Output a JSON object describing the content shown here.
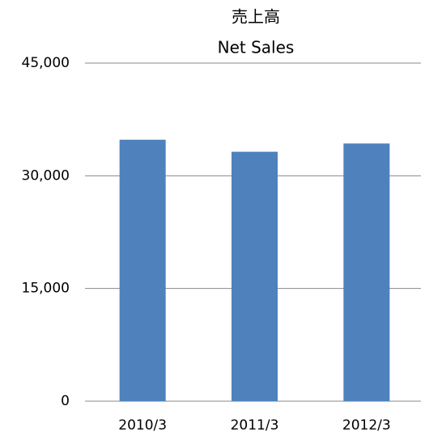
{
  "chart_data": {
    "type": "bar",
    "title": "売上高",
    "subtitle": "Net Sales",
    "categories": [
      "2010/3",
      "2011/3",
      "2012/3"
    ],
    "values": [
      34800,
      33200,
      34300
    ],
    "color": "#4f81bd",
    "ylim": [
      0,
      45000
    ],
    "yticks": [
      {
        "value": 0,
        "label": "0"
      },
      {
        "value": 15000,
        "label": "15,000"
      },
      {
        "value": 30000,
        "label": "30,000"
      },
      {
        "value": 45000,
        "label": "45,000"
      }
    ],
    "grid": true
  }
}
